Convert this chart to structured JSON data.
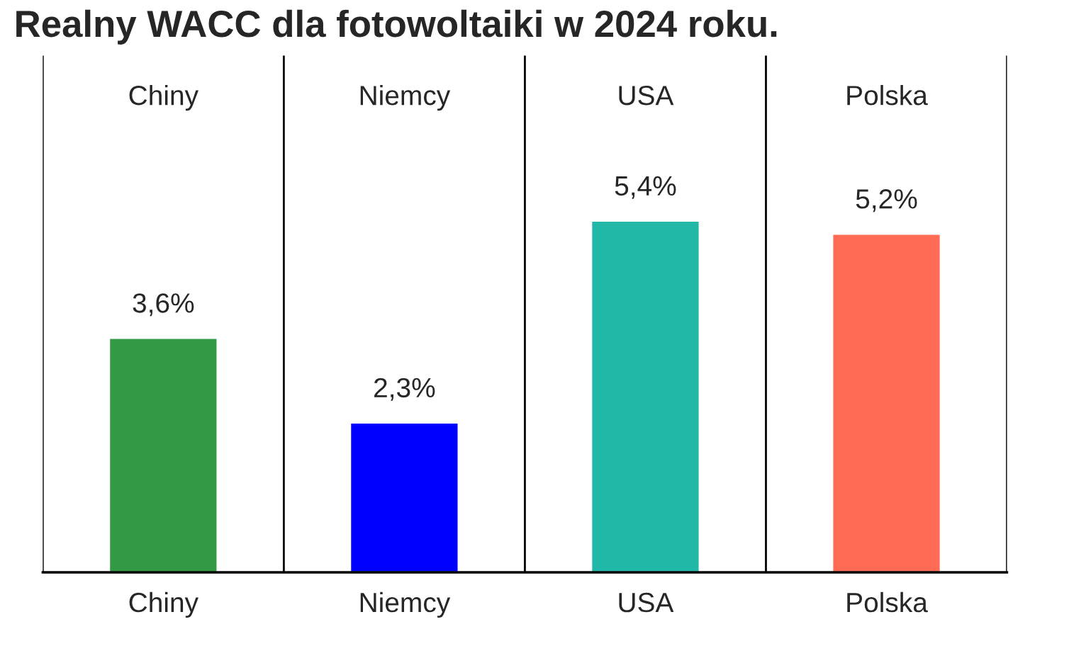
{
  "chart_data": {
    "type": "bar",
    "title": "Realny WACC dla fotowoltaiki w 2024 roku.",
    "categories": [
      "Chiny",
      "Niemcy",
      "USA",
      "Polska"
    ],
    "values": [
      3.6,
      2.3,
      5.4,
      5.2
    ],
    "value_labels": [
      "3,6%",
      "2,3%",
      "5,4%",
      "5,2%"
    ],
    "colors": [
      "#339944",
      "#0000ff",
      "#22b8a8",
      "#ff6b55"
    ],
    "grid": "x"
  }
}
